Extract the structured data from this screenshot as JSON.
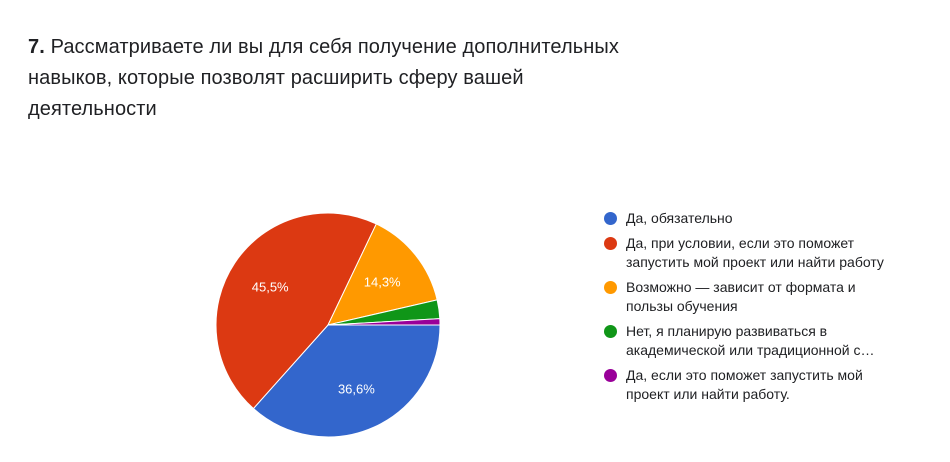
{
  "question": {
    "number": "7.",
    "text": "Рассматриваете ли вы для себя получение дополнительных навыков, которые позволят расширить сферу вашей деятельности"
  },
  "chart_data": {
    "type": "pie",
    "title": "7. Рассматриваете ли вы для себя получение дополнительных навыков, которые позволят расширить сферу вашей деятельности",
    "slices": [
      {
        "label": "Да, обязательно",
        "value": 36.6,
        "value_label": "36,6%",
        "color": "#3366cc"
      },
      {
        "label": "Да, при условии, если это поможет запустить мой проект или найти работу",
        "value": 45.5,
        "value_label": "45,5%",
        "color": "#dc3912"
      },
      {
        "label": "Возможно — зависит от формата и пользы обучения",
        "value": 14.3,
        "value_label": "14,3%",
        "color": "#ff9900"
      },
      {
        "label": "Нет, я планирую развиваться в академической или традиционной с…",
        "value": 2.7,
        "value_label": "",
        "color": "#109618"
      },
      {
        "label": "Да, если это поможет запустить мой проект или найти работу.",
        "value": 0.9,
        "value_label": "",
        "color": "#990099"
      }
    ],
    "legend_position": "right"
  }
}
